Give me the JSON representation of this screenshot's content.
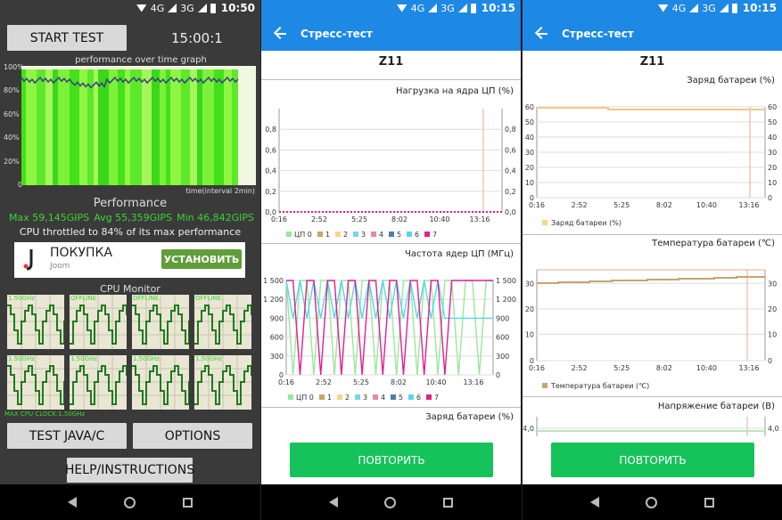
{
  "status_bars": [
    {
      "net1": "4G",
      "net2": "3G",
      "time": "10:50"
    },
    {
      "net1": "4G",
      "net2": "3G",
      "time": "10:15"
    },
    {
      "net1": "4G",
      "net2": "3G",
      "time": "10:15"
    }
  ],
  "throttling": {
    "start_button": "START TEST",
    "elapsed": "15:00:1",
    "graph_title": "performance over time graph",
    "y_ticks": [
      "100%",
      "80%",
      "60%",
      "40%",
      "20%",
      "0"
    ],
    "x_note": "time(interval 2min)",
    "performance_title": "Performance",
    "max": "Max 59,145GIPS",
    "avg": "Avg 55,359GIPS",
    "min": "Min 46,842GIPS",
    "throttle_text": "CPU throttled to 84% of its max performance",
    "ad": {
      "title": "ПОКУПКА",
      "subtitle": "Joom",
      "button": "УСТАНОВИТЬ"
    },
    "cpu_monitor_title": "CPU Monitor",
    "cores": [
      "1.50GHz",
      "OFFLINE",
      "OFFLINE",
      "OFFLINE",
      "1.50GHz",
      "1.50GHz",
      "1.50GHz",
      "1.50GHz"
    ],
    "max_clock": "MAX CPU CLOCK:1.50GHz",
    "test_java_button": "TEST JAVA/C",
    "options_button": "OPTIONS",
    "help_button": "HELP/INSTRUCTIONS",
    "graph_fill": 0.97,
    "graph_line": 0.88
  },
  "stress1": {
    "app_title": "Стресс-тест",
    "device": "Z11",
    "cpu_load": {
      "title": "Нагрузка на ядра ЦП (%)",
      "y_ticks": [
        "0,8",
        "0,6",
        "0,4",
        "0,2",
        "0,0"
      ],
      "x_ticks": [
        "0:16",
        "2:52",
        "5:25",
        "8:02",
        "10:40",
        "13:16"
      ],
      "legend": [
        "ЦП 0",
        "1",
        "2",
        "3",
        "4",
        "5",
        "6",
        "7"
      ]
    },
    "cpu_freq": {
      "title": "Частота ядер ЦП (МГц)",
      "y_ticks": [
        "1 500",
        "1 200",
        "900",
        "600",
        "300",
        "0"
      ],
      "x_ticks": [
        "0:16",
        "2:52",
        "5:25",
        "8:02",
        "10:40",
        "13:16"
      ],
      "legend": [
        "ЦП 0",
        "1",
        "2",
        "3",
        "4",
        "5",
        "6",
        "7"
      ]
    },
    "battery_title": "Заряд батареи (%)",
    "retry": "ПОВТОРИТЬ"
  },
  "stress2": {
    "app_title": "Стресс-тест",
    "device": "Z11",
    "battery_charge": {
      "title": "Заряд батареи (%)",
      "y_ticks": [
        "60",
        "50",
        "40",
        "30",
        "20",
        "10",
        "0"
      ],
      "x_ticks": [
        "0:16",
        "2:52",
        "5:25",
        "8:02",
        "10:40",
        "13:16"
      ],
      "legend": "Заряд батареи (%)"
    },
    "battery_temp": {
      "title": "Температура батареи (℃)",
      "y_ticks": [
        "30",
        "20",
        "10",
        "0"
      ],
      "x_ticks": [
        "0:16",
        "2:52",
        "5:25",
        "8:02",
        "10:40",
        "13:16"
      ],
      "legend": "Температура батареи (℃)"
    },
    "voltage": {
      "title": "Напряжение батареи (В)",
      "y_tick": "4,0"
    },
    "retry": "ПОВТОРИТЬ"
  },
  "legend_colors": [
    "#9be79b",
    "#c8a46e",
    "#f7d58a",
    "#7dd3ea",
    "#e98a9a",
    "#4f7fa8",
    "#53d6ee",
    "#e0208f"
  ],
  "accent": "#1e88e5",
  "retry_color": "#16c35a"
}
